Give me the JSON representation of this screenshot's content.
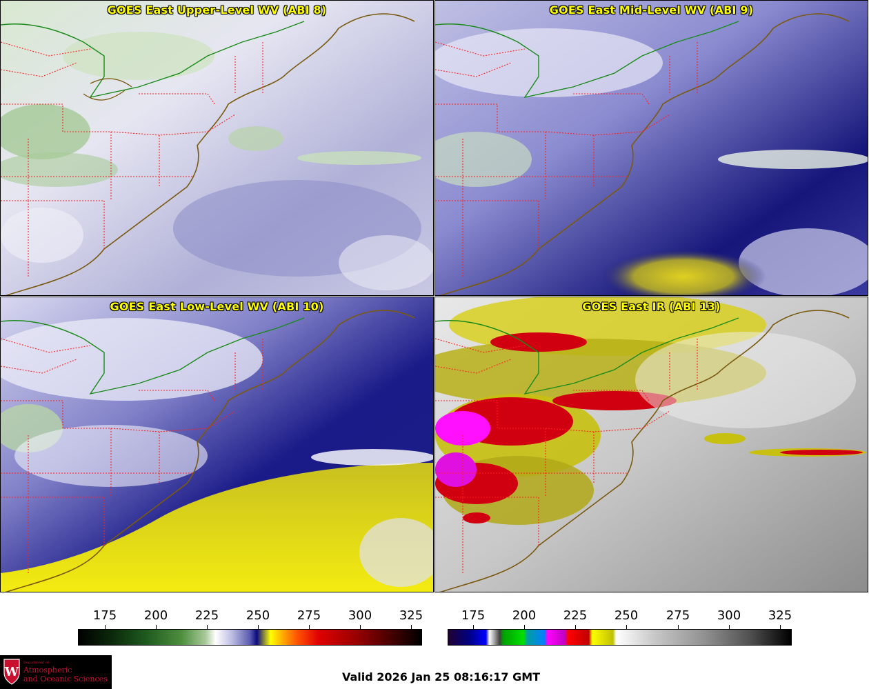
{
  "panels": [
    {
      "id": "p1",
      "title": "GOES East Upper-Level WV (ABI 8)",
      "theme": "upper"
    },
    {
      "id": "p2",
      "title": "GOES East Mid-Level WV (ABI 9)",
      "theme": "mid"
    },
    {
      "id": "p3",
      "title": "GOES East Low-Level WV (ABI 10)",
      "theme": "low"
    },
    {
      "id": "p4",
      "title": "GOES East IR (ABI 13)",
      "theme": "ir"
    }
  ],
  "colorbars": {
    "wv": {
      "ticks": [
        "175",
        "200",
        "225",
        "250",
        "275",
        "300",
        "325"
      ]
    },
    "ir": {
      "ticks": [
        "175",
        "200",
        "225",
        "250",
        "275",
        "300",
        "325"
      ]
    }
  },
  "logo": {
    "dept": "Department of",
    "line1": "Atmospheric",
    "line2": "and Oceanic Sciences",
    "crest_letter": "W"
  },
  "valid_time": "Valid 2026 Jan 25 08:16:17 GMT",
  "colors": {
    "title": "#ffff00",
    "state_border": "#ff2020",
    "coastline": "#7a5a10",
    "canada_border": "#1a8a1a"
  }
}
